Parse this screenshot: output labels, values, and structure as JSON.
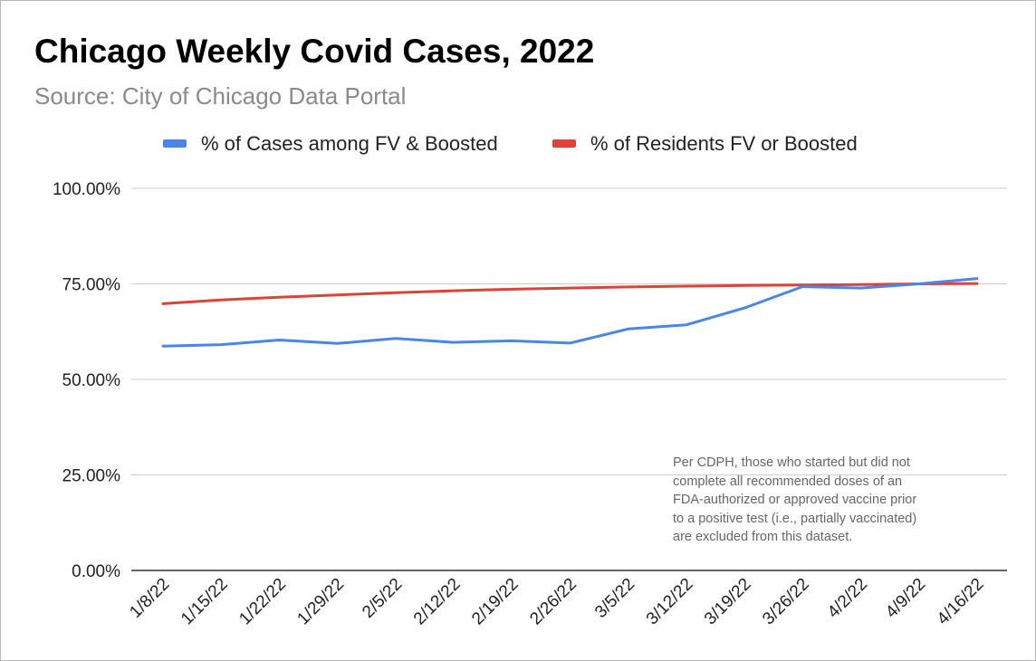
{
  "chart_data": {
    "type": "line",
    "title": "Chicago Weekly Covid Cases, 2022",
    "subtitle": "Source: City of Chicago Data Portal",
    "categories": [
      "1/8/22",
      "1/15/22",
      "1/22/22",
      "1/29/22",
      "2/5/22",
      "2/12/22",
      "2/19/22",
      "2/26/22",
      "3/5/22",
      "3/12/22",
      "3/19/22",
      "3/26/22",
      "4/2/22",
      "4/9/22",
      "4/16/22"
    ],
    "series": [
      {
        "name": "% of Cases among FV & Boosted",
        "color": "#4a86e8",
        "values": [
          58.7,
          59.1,
          60.3,
          59.4,
          60.7,
          59.7,
          60.1,
          59.5,
          63.2,
          64.3,
          68.7,
          74.3,
          73.9,
          75.0,
          76.4
        ]
      },
      {
        "name": "% of Residents FV or Boosted",
        "color": "#db4437",
        "values": [
          69.8,
          70.8,
          71.5,
          72.1,
          72.7,
          73.2,
          73.6,
          73.9,
          74.2,
          74.4,
          74.6,
          74.7,
          74.8,
          75.0,
          75.1
        ]
      }
    ],
    "ylim": [
      0,
      100
    ],
    "y_ticks": [
      0,
      25,
      50,
      75,
      100
    ],
    "y_tick_labels": [
      "0.00%",
      "25.00%",
      "50.00%",
      "75.00%",
      "100.00%"
    ],
    "grid": true,
    "legend": "top",
    "annotation": [
      "Per CDPH, those who started but did not",
      "complete all recommended doses of an",
      "FDA-authorized or approved vaccine prior",
      "to a positive test (i.e., partially vaccinated)",
      "are excluded from this dataset."
    ]
  }
}
